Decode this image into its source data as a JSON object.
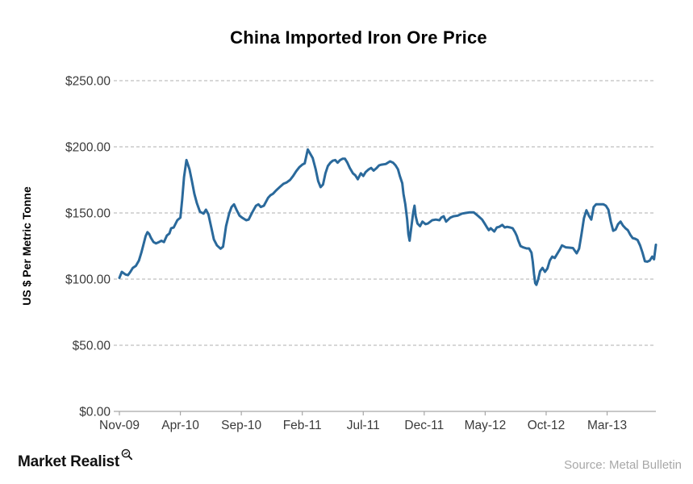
{
  "title": "China Imported Iron Ore Price",
  "footer": {
    "brand": "Market Realist",
    "source": "Source: Metal Bulletin"
  },
  "colors": {
    "line": "#2a699b",
    "grid": "#bfbfbf",
    "axis": "#a6a6a6",
    "tick_text": "#3a3a3a",
    "title_text": "#000000",
    "source_text": "#a8a8a8"
  },
  "chart_data": {
    "type": "line",
    "title": "China Imported Iron Ore Price",
    "xlabel": "",
    "ylabel": "US $ Per Metric Tonne",
    "ylim": [
      0,
      250
    ],
    "ytick_values": [
      0,
      50,
      100,
      150,
      200,
      250
    ],
    "ytick_labels": [
      "$0.00",
      "$50.00",
      "$100.00",
      "$150.00",
      "$200.00",
      "$250.00"
    ],
    "xtick_labels": [
      "Nov-09",
      "Apr-10",
      "Sep-10",
      "Feb-11",
      "Jul-11",
      "Dec-11",
      "May-12",
      "Oct-12",
      "Mar-13"
    ],
    "xtick_months": [
      0,
      5,
      10,
      15,
      20,
      25,
      30,
      35,
      40
    ],
    "x_range_months": [
      0,
      44
    ],
    "grid": "horizontal-dashed",
    "legend": "none",
    "series": [
      {
        "points": [
          [
            0,
            101
          ],
          [
            0.2,
            105.5
          ],
          [
            0.5,
            103.5
          ],
          [
            0.7,
            103
          ],
          [
            0.9,
            105.5
          ],
          [
            1.1,
            108.5
          ],
          [
            1.35,
            110
          ],
          [
            1.6,
            114
          ],
          [
            1.8,
            120
          ],
          [
            2,
            127
          ],
          [
            2.15,
            132.5
          ],
          [
            2.3,
            135.5
          ],
          [
            2.45,
            134
          ],
          [
            2.6,
            131
          ],
          [
            2.8,
            128
          ],
          [
            3,
            127
          ],
          [
            3.25,
            128
          ],
          [
            3.45,
            129
          ],
          [
            3.65,
            128
          ],
          [
            3.9,
            133
          ],
          [
            4.1,
            134.5
          ],
          [
            4.25,
            138.5
          ],
          [
            4.45,
            139
          ],
          [
            4.75,
            144.5
          ],
          [
            5,
            146.5
          ],
          [
            5.15,
            160
          ],
          [
            5.3,
            177
          ],
          [
            5.5,
            190
          ],
          [
            5.75,
            183
          ],
          [
            5.95,
            174
          ],
          [
            6.15,
            164.5
          ],
          [
            6.35,
            157.5
          ],
          [
            6.6,
            151
          ],
          [
            6.9,
            149.5
          ],
          [
            7.1,
            152.5
          ],
          [
            7.3,
            149
          ],
          [
            7.55,
            138.5
          ],
          [
            7.75,
            130
          ],
          [
            8,
            125.5
          ],
          [
            8.3,
            123
          ],
          [
            8.5,
            124.5
          ],
          [
            8.75,
            140
          ],
          [
            9,
            149.5
          ],
          [
            9.2,
            154.5
          ],
          [
            9.4,
            156.5
          ],
          [
            9.6,
            152.5
          ],
          [
            9.85,
            148
          ],
          [
            10.05,
            146.5
          ],
          [
            10.4,
            144.5
          ],
          [
            10.6,
            145
          ],
          [
            10.9,
            150.5
          ],
          [
            11.2,
            155.5
          ],
          [
            11.4,
            156.5
          ],
          [
            11.6,
            154.5
          ],
          [
            11.85,
            155.5
          ],
          [
            12.2,
            161.5
          ],
          [
            12.4,
            163.5
          ],
          [
            12.6,
            164.5
          ],
          [
            12.85,
            167
          ],
          [
            13.2,
            170
          ],
          [
            13.45,
            172
          ],
          [
            13.7,
            173
          ],
          [
            14,
            175
          ],
          [
            14.25,
            178
          ],
          [
            14.5,
            181.5
          ],
          [
            14.75,
            184.5
          ],
          [
            15,
            186.5
          ],
          [
            15.2,
            187.5
          ],
          [
            15.45,
            198
          ],
          [
            15.85,
            191.5
          ],
          [
            16.1,
            183
          ],
          [
            16.3,
            174
          ],
          [
            16.5,
            169.5
          ],
          [
            16.7,
            171.5
          ],
          [
            16.9,
            180
          ],
          [
            17.1,
            185.5
          ],
          [
            17.3,
            188
          ],
          [
            17.5,
            189.5
          ],
          [
            17.7,
            190
          ],
          [
            17.9,
            188
          ],
          [
            18.1,
            190
          ],
          [
            18.3,
            191
          ],
          [
            18.5,
            191
          ],
          [
            18.7,
            188
          ],
          [
            18.9,
            184
          ],
          [
            19.15,
            180
          ],
          [
            19.35,
            178.5
          ],
          [
            19.55,
            175.5
          ],
          [
            19.8,
            180
          ],
          [
            20,
            178
          ],
          [
            20.2,
            181
          ],
          [
            20.45,
            183
          ],
          [
            20.65,
            184
          ],
          [
            20.85,
            182
          ],
          [
            21.1,
            184
          ],
          [
            21.3,
            186
          ],
          [
            21.5,
            186.5
          ],
          [
            21.85,
            187
          ],
          [
            22.2,
            189
          ],
          [
            22.45,
            188
          ],
          [
            22.65,
            186
          ],
          [
            22.85,
            183
          ],
          [
            23,
            178
          ],
          [
            23.2,
            172.5
          ],
          [
            23.3,
            164.5
          ],
          [
            23.45,
            156.5
          ],
          [
            23.6,
            145
          ],
          [
            23.7,
            134
          ],
          [
            23.8,
            129
          ],
          [
            23.95,
            140
          ],
          [
            24.1,
            150.5
          ],
          [
            24.2,
            155.5
          ],
          [
            24.3,
            147.5
          ],
          [
            24.45,
            142
          ],
          [
            24.65,
            140
          ],
          [
            24.85,
            143.5
          ],
          [
            25.1,
            141.5
          ],
          [
            25.3,
            142
          ],
          [
            25.65,
            144.5
          ],
          [
            25.95,
            145
          ],
          [
            26.25,
            144.5
          ],
          [
            26.4,
            146.5
          ],
          [
            26.6,
            147.5
          ],
          [
            26.8,
            143.5
          ],
          [
            27.15,
            146.5
          ],
          [
            27.4,
            147.5
          ],
          [
            27.75,
            148
          ],
          [
            28.1,
            149.5
          ],
          [
            28.4,
            150
          ],
          [
            28.75,
            150.5
          ],
          [
            29.05,
            150.5
          ],
          [
            29.25,
            149
          ],
          [
            29.45,
            147.5
          ],
          [
            29.75,
            145
          ],
          [
            29.95,
            142
          ],
          [
            30.15,
            139
          ],
          [
            30.3,
            137
          ],
          [
            30.45,
            138.5
          ],
          [
            30.75,
            136
          ],
          [
            30.95,
            139
          ],
          [
            31.15,
            139.5
          ],
          [
            31.4,
            141
          ],
          [
            31.6,
            139
          ],
          [
            31.8,
            139.5
          ],
          [
            32.05,
            139
          ],
          [
            32.25,
            138.5
          ],
          [
            32.45,
            135.5
          ],
          [
            32.6,
            132.5
          ],
          [
            32.7,
            129.5
          ],
          [
            32.9,
            125
          ],
          [
            33.1,
            124
          ],
          [
            33.4,
            123.2
          ],
          [
            33.6,
            123.2
          ],
          [
            33.8,
            120
          ],
          [
            33.9,
            113
          ],
          [
            34,
            104
          ],
          [
            34.1,
            97
          ],
          [
            34.2,
            95.7
          ],
          [
            34.35,
            100
          ],
          [
            34.5,
            106
          ],
          [
            34.7,
            108.5
          ],
          [
            34.9,
            105.5
          ],
          [
            35.1,
            108
          ],
          [
            35.3,
            114
          ],
          [
            35.5,
            117
          ],
          [
            35.7,
            116
          ],
          [
            35.9,
            119
          ],
          [
            36.1,
            122
          ],
          [
            36.3,
            125.5
          ],
          [
            36.6,
            124
          ],
          [
            36.9,
            123.8
          ],
          [
            37.2,
            123.5
          ],
          [
            37.5,
            119.5
          ],
          [
            37.7,
            123
          ],
          [
            37.9,
            134
          ],
          [
            38.1,
            146
          ],
          [
            38.3,
            152
          ],
          [
            38.5,
            148
          ],
          [
            38.7,
            145
          ],
          [
            38.9,
            154.5
          ],
          [
            39.1,
            156.5
          ],
          [
            39.4,
            156.5
          ],
          [
            39.7,
            156.5
          ],
          [
            39.9,
            155.5
          ],
          [
            40.1,
            152.5
          ],
          [
            40.3,
            143.5
          ],
          [
            40.5,
            136.5
          ],
          [
            40.7,
            137.5
          ],
          [
            40.9,
            141.5
          ],
          [
            41.1,
            143.5
          ],
          [
            41.3,
            140.5
          ],
          [
            41.5,
            138.5
          ],
          [
            41.7,
            137
          ],
          [
            41.9,
            133.5
          ],
          [
            42.1,
            131
          ],
          [
            42.3,
            130.5
          ],
          [
            42.5,
            129.5
          ],
          [
            42.7,
            125.5
          ],
          [
            42.9,
            120
          ],
          [
            43.1,
            113.5
          ],
          [
            43.3,
            113.2
          ],
          [
            43.5,
            114
          ],
          [
            43.7,
            117
          ],
          [
            43.85,
            115
          ],
          [
            44,
            126
          ]
        ]
      }
    ]
  }
}
